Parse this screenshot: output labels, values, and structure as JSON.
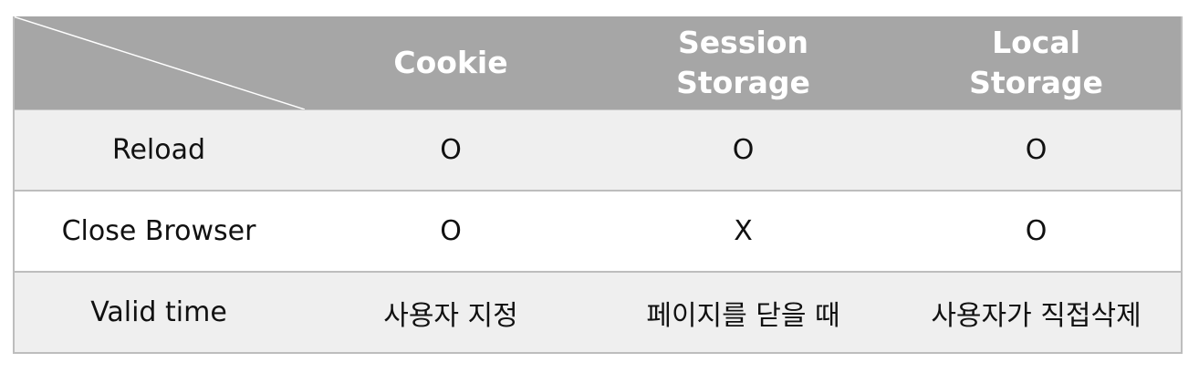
{
  "table": {
    "columns": [
      "",
      "Cookie",
      "Session\nStorage",
      "Local\nStorage"
    ],
    "header": {
      "cookie": "Cookie",
      "session_line1": "Session",
      "session_line2": "Storage",
      "local_line1": "Local",
      "local_line2": "Storage"
    },
    "rows": [
      {
        "label": "Reload",
        "cookie": "O",
        "session": "O",
        "local": "O"
      },
      {
        "label": "Close Browser",
        "cookie": "O",
        "session": "X",
        "local": "O"
      },
      {
        "label": "Valid time",
        "cookie": "사용자 지정",
        "session": "페이지를 닫을 때",
        "local": "사용자가 직접삭제"
      }
    ]
  },
  "colors": {
    "header_bg": "#a6a6a6",
    "header_text": "#ffffff",
    "row_shade": "#efefef",
    "row_plain": "#ffffff",
    "border": "#bdbdbd"
  }
}
